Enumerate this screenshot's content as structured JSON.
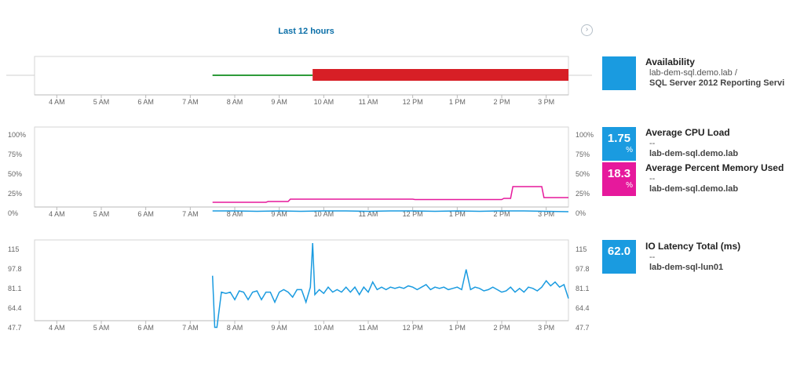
{
  "header": {
    "range_label": "Last 12 hours",
    "next_icon": "chevron-right-icon"
  },
  "colors": {
    "accent_blue": "#1a9be0",
    "memory_pink": "#e6199c",
    "availability_up": "#2e9b3a",
    "availability_down": "#d71f26",
    "tile_blue": "#1a9be0",
    "tile_pink": "#e6199c"
  },
  "time_axis": [
    "4 AM",
    "5 AM",
    "6 AM",
    "7 AM",
    "8 AM",
    "9 AM",
    "10 AM",
    "11 AM",
    "12 PM",
    "1 PM",
    "2 PM",
    "3 PM"
  ],
  "availability": {
    "title": "Availability",
    "node": "lab-dem-sql.demo.lab /",
    "component": "SQL Server 2012 Reporting Servi",
    "segments": [
      {
        "status": "up",
        "start": "7:30 AM",
        "end": "9:45 AM"
      },
      {
        "status": "down",
        "start": "9:45 AM",
        "end": "3:30 PM"
      }
    ]
  },
  "cpu_memory": {
    "y_ticks": [
      "100%",
      "75%",
      "50%",
      "25%",
      "0%"
    ],
    "cpu": {
      "title": "Average CPU Load",
      "value": "1.75",
      "unit": "%",
      "dash": "--",
      "node": "lab-dem-sql.demo.lab"
    },
    "memory": {
      "title": "Average Percent Memory Used",
      "value": "18.3",
      "unit": "%",
      "dash": "--",
      "node": "lab-dem-sql.demo.lab"
    }
  },
  "io": {
    "y_ticks": [
      "115",
      "97.8",
      "81.1",
      "64.4",
      "47.7"
    ],
    "title": "IO Latency Total (ms)",
    "value": "62.0",
    "dash": "--",
    "node": "lab-dem-sql-lun01"
  },
  "chart_data": [
    {
      "type": "line",
      "title": "",
      "x_start_hour": 3.5,
      "x_end_hour": 15.5,
      "series": [
        {
          "name": "Average CPU Load",
          "color": "#1a9be0",
          "x": [
            7.5,
            8.0,
            8.5,
            9.0,
            9.5,
            10.0,
            10.5,
            11.0,
            11.5,
            12.0,
            12.5,
            13.0,
            13.5,
            14.0,
            14.5,
            15.0,
            15.5
          ],
          "y": [
            3,
            3,
            2.5,
            3,
            2.5,
            3,
            3,
            2.5,
            3,
            3,
            2.5,
            3,
            2.5,
            3,
            3,
            2.5,
            2
          ]
        },
        {
          "name": "Average Percent Memory Used",
          "color": "#e6199c",
          "x": [
            7.5,
            8.7,
            8.75,
            9.2,
            9.25,
            12.0,
            12.05,
            14.0,
            14.05,
            14.2,
            14.25,
            14.9,
            14.95,
            15.5
          ],
          "y": [
            14,
            14,
            15,
            15,
            18,
            18,
            17.5,
            17.5,
            19,
            19,
            34,
            34,
            20,
            20
          ]
        }
      ],
      "ylim": [
        0,
        100
      ]
    },
    {
      "type": "line",
      "title": "",
      "x_start_hour": 3.5,
      "x_end_hour": 15.5,
      "series": [
        {
          "name": "IO Latency Total (ms)",
          "color": "#1a9be0",
          "x": [
            7.5,
            7.55,
            7.6,
            7.7,
            7.8,
            7.9,
            8.0,
            8.1,
            8.2,
            8.3,
            8.4,
            8.5,
            8.6,
            8.7,
            8.8,
            8.9,
            9.0,
            9.1,
            9.2,
            9.3,
            9.4,
            9.5,
            9.6,
            9.7,
            9.75,
            9.8,
            9.9,
            10.0,
            10.1,
            10.2,
            10.3,
            10.4,
            10.5,
            10.6,
            10.7,
            10.8,
            10.9,
            11.0,
            11.1,
            11.2,
            11.3,
            11.4,
            11.5,
            11.6,
            11.7,
            11.8,
            11.9,
            12.0,
            12.1,
            12.2,
            12.3,
            12.4,
            12.5,
            12.6,
            12.7,
            12.8,
            12.9,
            13.0,
            13.1,
            13.2,
            13.3,
            13.4,
            13.5,
            13.6,
            13.7,
            13.8,
            13.9,
            14.0,
            14.1,
            14.2,
            14.3,
            14.4,
            14.5,
            14.6,
            14.7,
            14.8,
            14.9,
            15.0,
            15.1,
            15.2,
            15.3,
            15.4,
            15.5
          ],
          "y": [
            89,
            48,
            48,
            76,
            75,
            76,
            70,
            77,
            76,
            70,
            76,
            77,
            70,
            76,
            76,
            68,
            76,
            78,
            76,
            72,
            78,
            78,
            68,
            80,
            115,
            74,
            78,
            75,
            80,
            76,
            78,
            76,
            80,
            76,
            80,
            74,
            80,
            76,
            84,
            78,
            80,
            78,
            80,
            79,
            80,
            79,
            81,
            80,
            78,
            80,
            82,
            78,
            80,
            79,
            80,
            78,
            79,
            80,
            78,
            94,
            78,
            80,
            79,
            77,
            78,
            80,
            78,
            76,
            77,
            80,
            76,
            79,
            76,
            80,
            79,
            77,
            80,
            85,
            81,
            84,
            80,
            82,
            71
          ]
        }
      ],
      "ylim": [
        47.7,
        115
      ]
    }
  ]
}
